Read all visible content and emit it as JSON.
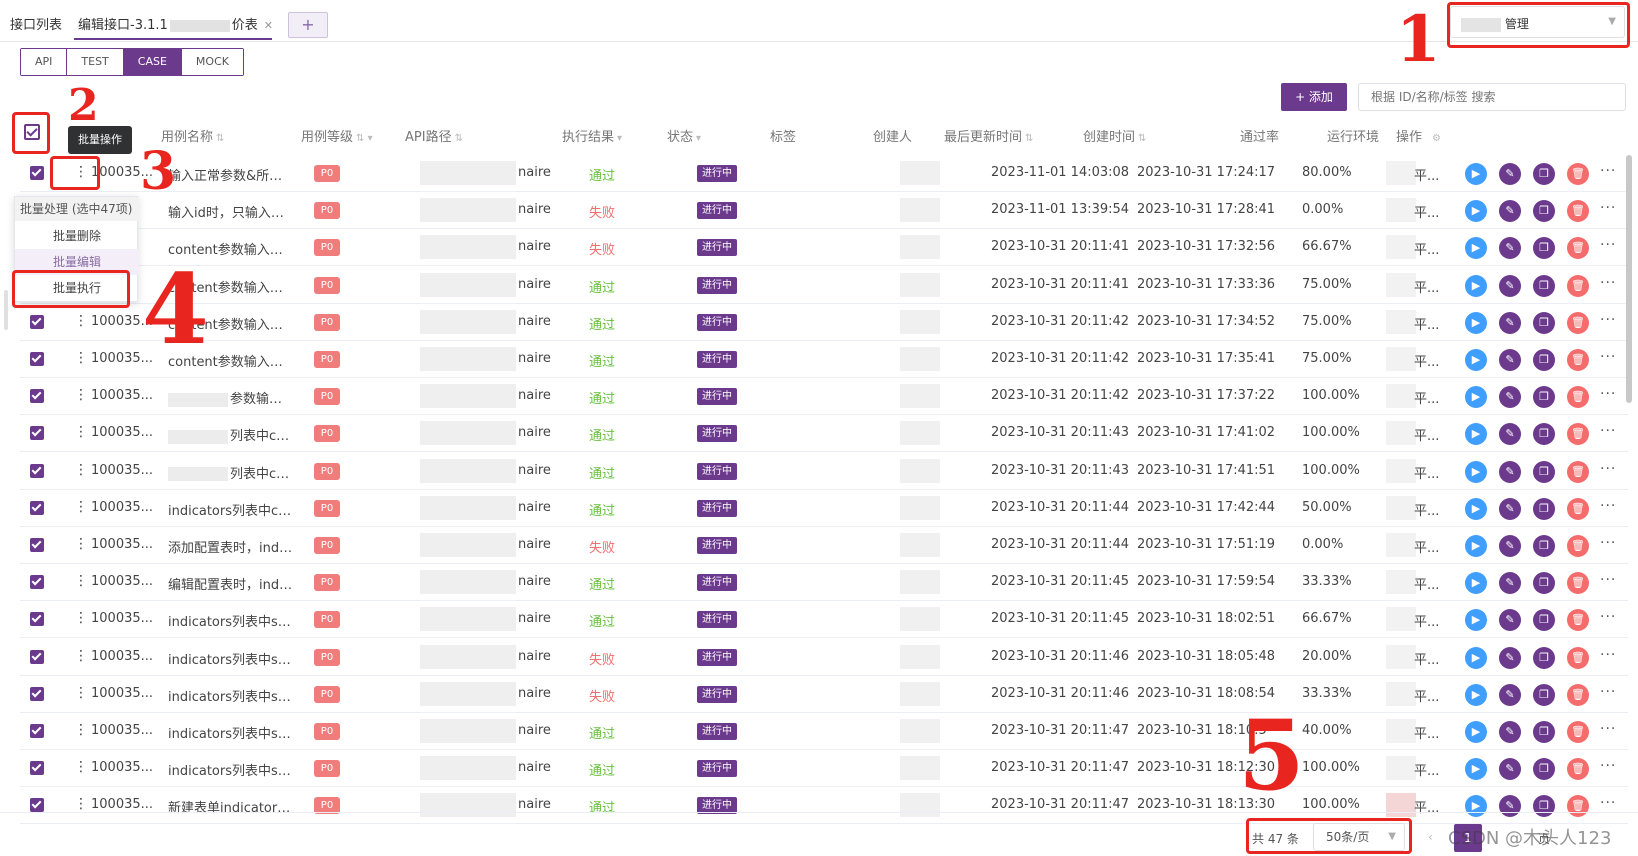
{
  "tabs": [
    {
      "label": "接口列表"
    },
    {
      "label": "编辑接口-3.1.1",
      "suffix": "价表",
      "active": true
    }
  ],
  "tab_add": "+",
  "project_select": {
    "prefix": "",
    "value": "管理"
  },
  "subtabs": [
    "API",
    "TEST",
    "CASE",
    "MOCK"
  ],
  "add_button": "+ 添加",
  "search": {
    "placeholder": "根据 ID/名称/标签 搜索"
  },
  "tooltip": "批量操作",
  "columns": {
    "name": "用例名称",
    "level": "用例等级",
    "api": "API路径",
    "result": "执行结果",
    "status": "状态",
    "tags": "标签",
    "creator": "创建人",
    "updated": "最后更新时间",
    "created": "创建时间",
    "pass_rate": "通过率",
    "env": "运行环境",
    "ops": "操作"
  },
  "batch_menu": {
    "title": "批量处理 (选中47项)",
    "items": [
      "批量删除",
      "批量编辑",
      "批量执行"
    ]
  },
  "rows": [
    {
      "id": "100035...",
      "name": "输入正常参数&所有...",
      "level": "P0",
      "api": "naire",
      "result": "通过",
      "pass": true,
      "status": "进行中",
      "updated": "2023-11-01 14:03:08",
      "created": "2023-10-31 17:24:17",
      "rate": "80.00%",
      "env": "平..."
    },
    {
      "id": "100035...",
      "name": "输入id时，只输入必...",
      "level": "P0",
      "api": "naire",
      "result": "失败",
      "pass": false,
      "status": "进行中",
      "updated": "2023-11-01 13:39:54",
      "created": "2023-10-31 17:28:41",
      "rate": "0.00%",
      "env": "平..."
    },
    {
      "id": "100035...",
      "name": "content参数输入任...",
      "level": "P0",
      "api": "naire",
      "result": "失败",
      "pass": false,
      "status": "进行中",
      "updated": "2023-10-31 20:11:41",
      "created": "2023-10-31 17:32:56",
      "rate": "66.67%",
      "env": "平..."
    },
    {
      "id": "100035...",
      "name": "content参数输入超...",
      "level": "P0",
      "api": "naire",
      "result": "通过",
      "pass": true,
      "status": "进行中",
      "updated": "2023-10-31 20:11:41",
      "created": "2023-10-31 17:33:36",
      "rate": "75.00%",
      "env": "平..."
    },
    {
      "id": "100035...",
      "name": "content参数输入同...",
      "level": "P0",
      "api": "naire",
      "result": "通过",
      "pass": true,
      "status": "进行中",
      "updated": "2023-10-31 20:11:42",
      "created": "2023-10-31 17:34:52",
      "rate": "75.00%",
      "env": "平..."
    },
    {
      "id": "100035...",
      "name": "content参数输入为空",
      "level": "P0",
      "api": "naire",
      "result": "通过",
      "pass": true,
      "status": "进行中",
      "updated": "2023-10-31 20:11:42",
      "created": "2023-10-31 17:35:41",
      "rate": "75.00%",
      "env": "平..."
    },
    {
      "id": "100035...",
      "name": "参数输入...",
      "level": "P0",
      "api": "naire",
      "result": "通过",
      "pass": true,
      "status": "进行中",
      "updated": "2023-10-31 20:11:42",
      "created": "2023-10-31 17:37:22",
      "rate": "100.00%",
      "env": "平..."
    },
    {
      "id": "100035...",
      "name": "列表中con...",
      "level": "P0",
      "api": "naire",
      "result": "通过",
      "pass": true,
      "status": "进行中",
      "updated": "2023-10-31 20:11:43",
      "created": "2023-10-31 17:41:02",
      "rate": "100.00%",
      "env": "平..."
    },
    {
      "id": "100035...",
      "name": "列表中con...",
      "level": "P0",
      "api": "naire",
      "result": "通过",
      "pass": true,
      "status": "进行中",
      "updated": "2023-10-31 20:11:43",
      "created": "2023-10-31 17:41:51",
      "rate": "100.00%",
      "env": "平..."
    },
    {
      "id": "100035...",
      "name": "indicators列表中con...",
      "level": "P0",
      "api": "naire",
      "result": "通过",
      "pass": true,
      "status": "进行中",
      "updated": "2023-10-31 20:11:44",
      "created": "2023-10-31 17:42:44",
      "rate": "50.00%",
      "env": "平..."
    },
    {
      "id": "100035...",
      "name": "添加配置表时，indic...",
      "level": "P0",
      "api": "naire",
      "result": "失败",
      "pass": false,
      "status": "进行中",
      "updated": "2023-10-31 20:11:44",
      "created": "2023-10-31 17:51:19",
      "rate": "0.00%",
      "env": "平..."
    },
    {
      "id": "100035...",
      "name": "编辑配置表时，indic...",
      "level": "P0",
      "api": "naire",
      "result": "通过",
      "pass": true,
      "status": "进行中",
      "updated": "2023-10-31 20:11:45",
      "created": "2023-10-31 17:59:54",
      "rate": "33.33%",
      "env": "平..."
    },
    {
      "id": "100035...",
      "name": "indicators列表中sco...",
      "level": "P0",
      "api": "naire",
      "result": "通过",
      "pass": true,
      "status": "进行中",
      "updated": "2023-10-31 20:11:45",
      "created": "2023-10-31 18:02:51",
      "rate": "66.67%",
      "env": "平..."
    },
    {
      "id": "100035...",
      "name": "indicators列表中sco...",
      "level": "P0",
      "api": "naire",
      "result": "失败",
      "pass": false,
      "status": "进行中",
      "updated": "2023-10-31 20:11:46",
      "created": "2023-10-31 18:05:48",
      "rate": "20.00%",
      "env": "平..."
    },
    {
      "id": "100035...",
      "name": "indicators列表中sco...",
      "level": "P0",
      "api": "naire",
      "result": "失败",
      "pass": false,
      "status": "进行中",
      "updated": "2023-10-31 20:11:46",
      "created": "2023-10-31 18:08:54",
      "rate": "33.33%",
      "env": "平..."
    },
    {
      "id": "100035...",
      "name": "indicators列表中sco...",
      "level": "P0",
      "api": "naire",
      "result": "通过",
      "pass": true,
      "status": "进行中",
      "updated": "2023-10-31 20:11:47",
      "created": "2023-10-31 18:10:5",
      "rate": "40.00%",
      "env": "平..."
    },
    {
      "id": "100035...",
      "name": "indicators列表中sco...",
      "level": "P0",
      "api": "naire",
      "result": "通过",
      "pass": true,
      "status": "进行中",
      "updated": "2023-10-31 20:11:47",
      "created": "2023-10-31 18:12:30",
      "rate": "100.00%",
      "env": "平..."
    },
    {
      "id": "100035...",
      "name": "新建表单indicators...",
      "level": "P0",
      "api": "naire",
      "result": "通过",
      "pass": true,
      "status": "进行中",
      "updated": "2023-10-31 20:11:47",
      "created": "2023-10-31 18:13:30",
      "rate": "100.00%",
      "env": "平..."
    }
  ],
  "pagination": {
    "total": "共 47 条",
    "page_size": "50条/页",
    "current": "1",
    "goto": "页"
  },
  "watermark": "CSDN @木头人123",
  "annotations": [
    "1",
    "2",
    "3",
    "4",
    "5"
  ],
  "colors": {
    "primary": "#6b3a8c",
    "pass": "#67c23a",
    "fail": "#f56c6c",
    "annotation": "#e8251f"
  }
}
